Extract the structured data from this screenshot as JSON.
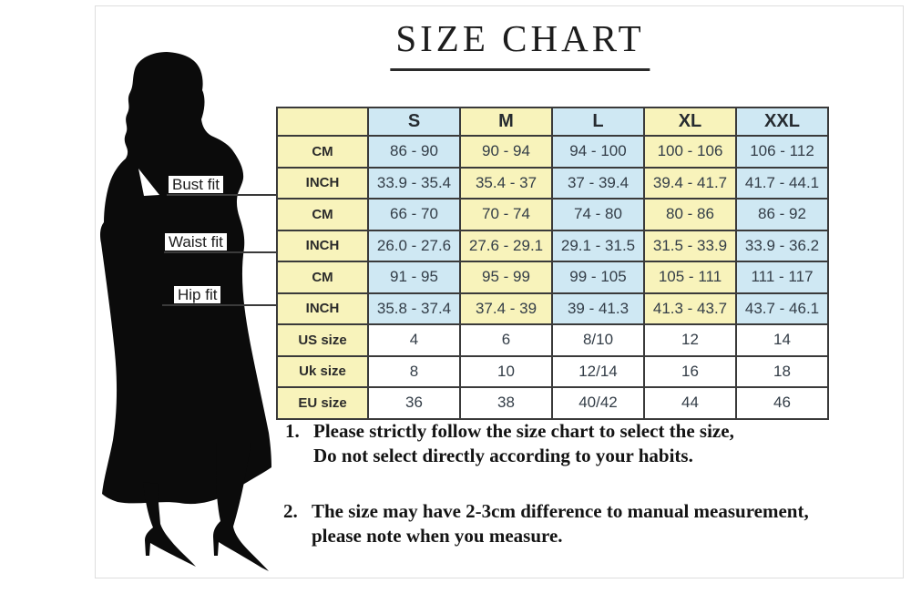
{
  "title": "SIZE CHART",
  "figure": {
    "silhouette": "woman-silhouette",
    "labels": [
      {
        "text": "Bust fit"
      },
      {
        "text": "Waist fit"
      },
      {
        "text": "Hip fit"
      }
    ]
  },
  "table": {
    "columns": [
      "",
      "S",
      "M",
      "L",
      "XL",
      "XXL"
    ],
    "rows": [
      {
        "label": "CM",
        "group": "bust",
        "style": "measure",
        "values": [
          "86 - 90",
          "90 - 94",
          "94 - 100",
          "100 - 106",
          "106 - 112"
        ]
      },
      {
        "label": "INCH",
        "group": "bust",
        "style": "measure",
        "values": [
          "33.9 - 35.4",
          "35.4 - 37",
          "37 - 39.4",
          "39.4 - 41.7",
          "41.7 - 44.1"
        ]
      },
      {
        "label": "CM",
        "group": "waist",
        "style": "measure",
        "values": [
          "66 - 70",
          "70 - 74",
          "74 - 80",
          "80 - 86",
          "86 - 92"
        ]
      },
      {
        "label": "INCH",
        "group": "waist",
        "style": "measure",
        "values": [
          "26.0 - 27.6",
          "27.6 - 29.1",
          "29.1 - 31.5",
          "31.5 - 33.9",
          "33.9 - 36.2"
        ]
      },
      {
        "label": "CM",
        "group": "hip",
        "style": "measure",
        "values": [
          "91 - 95",
          "95 - 99",
          "99 - 105",
          "105 - 111",
          "111 - 117"
        ]
      },
      {
        "label": "INCH",
        "group": "hip",
        "style": "measure",
        "values": [
          "35.8 - 37.4",
          "37.4 - 39",
          "39 - 41.3",
          "41.3 - 43.7",
          "43.7 - 46.1"
        ]
      },
      {
        "label": "US size",
        "style": "size",
        "values": [
          "4",
          "6",
          "8/10",
          "12",
          "14"
        ]
      },
      {
        "label": "Uk size",
        "style": "size",
        "values": [
          "8",
          "10",
          "12/14",
          "16",
          "18"
        ]
      },
      {
        "label": "EU size",
        "style": "size",
        "values": [
          "36",
          "38",
          "40/42",
          "44",
          "46"
        ]
      }
    ]
  },
  "notes": [
    {
      "number": "1.",
      "lines": [
        "Please strictly follow the size chart to select the size,",
        "Do not select directly according to your habits."
      ]
    },
    {
      "number": "2.",
      "lines": [
        "The size may have 2-3cm difference  to manual measurement,",
        "please note when you measure."
      ]
    }
  ],
  "colors": {
    "cell_yellow": "#f8f3bb",
    "cell_blue": "#cfe8f3",
    "cell_white": "#ffffff",
    "table_border": "#3a3a3a",
    "silhouette": "#0b0b0b",
    "text": "#1d1d1d"
  }
}
